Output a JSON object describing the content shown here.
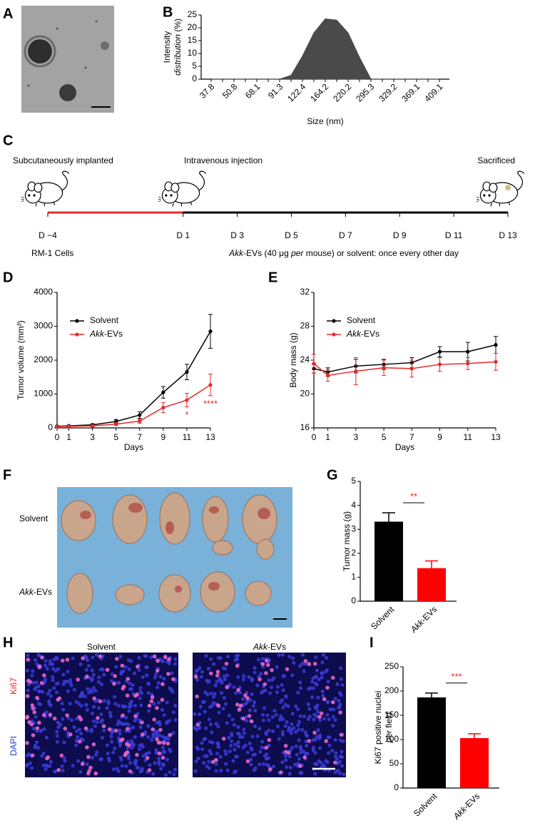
{
  "panel_labels": [
    "A",
    "B",
    "C",
    "D",
    "E",
    "F",
    "G",
    "H",
    "I"
  ],
  "timeline": {
    "events": [
      "Subcutaneously implanted",
      "Intravenous injection",
      "Sacrificed"
    ],
    "days": [
      {
        "value": -4,
        "label": "D −4"
      },
      {
        "value": 1,
        "label": "D 1"
      },
      {
        "value": 3,
        "label": "D 3"
      },
      {
        "value": 5,
        "label": "D 5"
      },
      {
        "value": 7,
        "label": "D 7"
      },
      {
        "value": 9,
        "label": "D 9"
      },
      {
        "value": 11,
        "label": "D 11"
      },
      {
        "value": 13,
        "label": "D 13"
      }
    ],
    "cells": "RM-1 Cells",
    "note": [
      "Akk",
      "-EVs (40 μg ",
      "per",
      " mouse) or solvent: once every other day"
    ]
  },
  "tumor_photo": {
    "rows": [
      "Solvent",
      "Akk-EVs"
    ]
  },
  "fluorescence": {
    "columns": [
      "Solvent",
      "Akk-EVs"
    ],
    "stains": [
      "Ki67",
      "DAPI"
    ]
  },
  "chart_data": [
    {
      "type": "area",
      "y_label": [
        "Intensity",
        "distribution (%)"
      ],
      "x_label": "Size (nm)",
      "categories": [
        "37.8",
        null,
        "50.8",
        null,
        "68.1",
        null,
        "91.3",
        null,
        "122.4",
        null,
        "164.2",
        null,
        "220.2",
        null,
        "295.3",
        null,
        "329.2",
        null,
        "369.1",
        null,
        "409.1"
      ],
      "values": [
        0,
        0,
        0,
        0,
        0,
        0,
        0,
        1.5,
        9,
        18,
        23.5,
        23,
        18,
        8.5,
        0,
        0,
        0,
        0,
        0,
        0,
        0
      ],
      "color": "#4a4a4a",
      "ylim": [
        0,
        25
      ],
      "yticks": [
        0,
        5,
        10,
        15,
        20,
        25
      ]
    },
    {
      "type": "line",
      "y_label": [
        "Tumor volume (mm³)"
      ],
      "x_label": "Days",
      "x": [
        0,
        1,
        3,
        5,
        7,
        9,
        11,
        13
      ],
      "series": [
        {
          "name": "Solvent",
          "color": "#000000",
          "values": [
            50,
            60,
            90,
            190,
            380,
            1050,
            1650,
            2850
          ],
          "errors": [
            20,
            20,
            30,
            60,
            100,
            170,
            230,
            500
          ]
        },
        {
          "name": "Akk-EVs",
          "color": "#e8282b",
          "values": [
            40,
            45,
            60,
            110,
            200,
            600,
            820,
            1270
          ],
          "errors": [
            20,
            20,
            25,
            40,
            60,
            150,
            200,
            320
          ]
        }
      ],
      "annotations": [
        {
          "text": "*",
          "x": 11
        },
        {
          "text": "****",
          "x": 13
        }
      ],
      "annotation_color": "#e8282b",
      "xlim": [
        0,
        13
      ],
      "xticks": [
        0,
        1,
        3,
        5,
        7,
        9,
        11,
        13
      ],
      "ylim": [
        0,
        4000
      ],
      "yticks": [
        0,
        1000,
        2000,
        3000,
        4000
      ],
      "legend": "upper left"
    },
    {
      "type": "line",
      "y_label": [
        "Body mass (g)"
      ],
      "x_label": "Days",
      "x": [
        0,
        1,
        3,
        5,
        7,
        9,
        11,
        13
      ],
      "series": [
        {
          "name": "Solvent",
          "color": "#000000",
          "values": [
            23.0,
            22.6,
            23.3,
            23.5,
            23.7,
            25.0,
            25.0,
            25.8
          ],
          "errors": [
            0.5,
            0.5,
            0.8,
            0.6,
            0.6,
            0.6,
            1.1,
            1.0
          ]
        },
        {
          "name": "Akk-EVs",
          "color": "#e8282b",
          "values": [
            23.6,
            22.2,
            22.7,
            23.1,
            23.0,
            23.5,
            23.6,
            23.8
          ],
          "errors": [
            1.1,
            0.7,
            1.6,
            0.9,
            1.0,
            0.8,
            0.7,
            1.0
          ]
        }
      ],
      "xlim": [
        0,
        13
      ],
      "xticks": [
        0,
        1,
        3,
        5,
        7,
        9,
        11,
        13
      ],
      "ylim": [
        16,
        32
      ],
      "yticks": [
        16,
        20,
        24,
        28,
        32
      ],
      "legend": "upper left"
    },
    {
      "type": "bar",
      "y_label": [
        "Tumor mass (g)"
      ],
      "categories": [
        "Solvent",
        "Akk-EVs"
      ],
      "values": [
        3.32,
        1.38
      ],
      "errors": [
        0.37,
        0.3
      ],
      "colors": [
        "#000000",
        "#ff0000"
      ],
      "annotation": "**",
      "annotation_color": "#e8282b",
      "ylim": [
        0,
        5
      ],
      "yticks": [
        0,
        1,
        2,
        3,
        4,
        5
      ]
    },
    {
      "type": "bar",
      "y_label": [
        "Ki67 positive nuclei",
        "per field"
      ],
      "categories": [
        "Solvent",
        "Akk-EVs"
      ],
      "values": [
        187,
        103
      ],
      "errors": [
        9,
        9
      ],
      "colors": [
        "#000000",
        "#ff0000"
      ],
      "annotation": "***",
      "annotation_color": "#e8282b",
      "ylim": [
        0,
        250
      ],
      "yticks": [
        0,
        50,
        100,
        150,
        200,
        250
      ]
    }
  ]
}
